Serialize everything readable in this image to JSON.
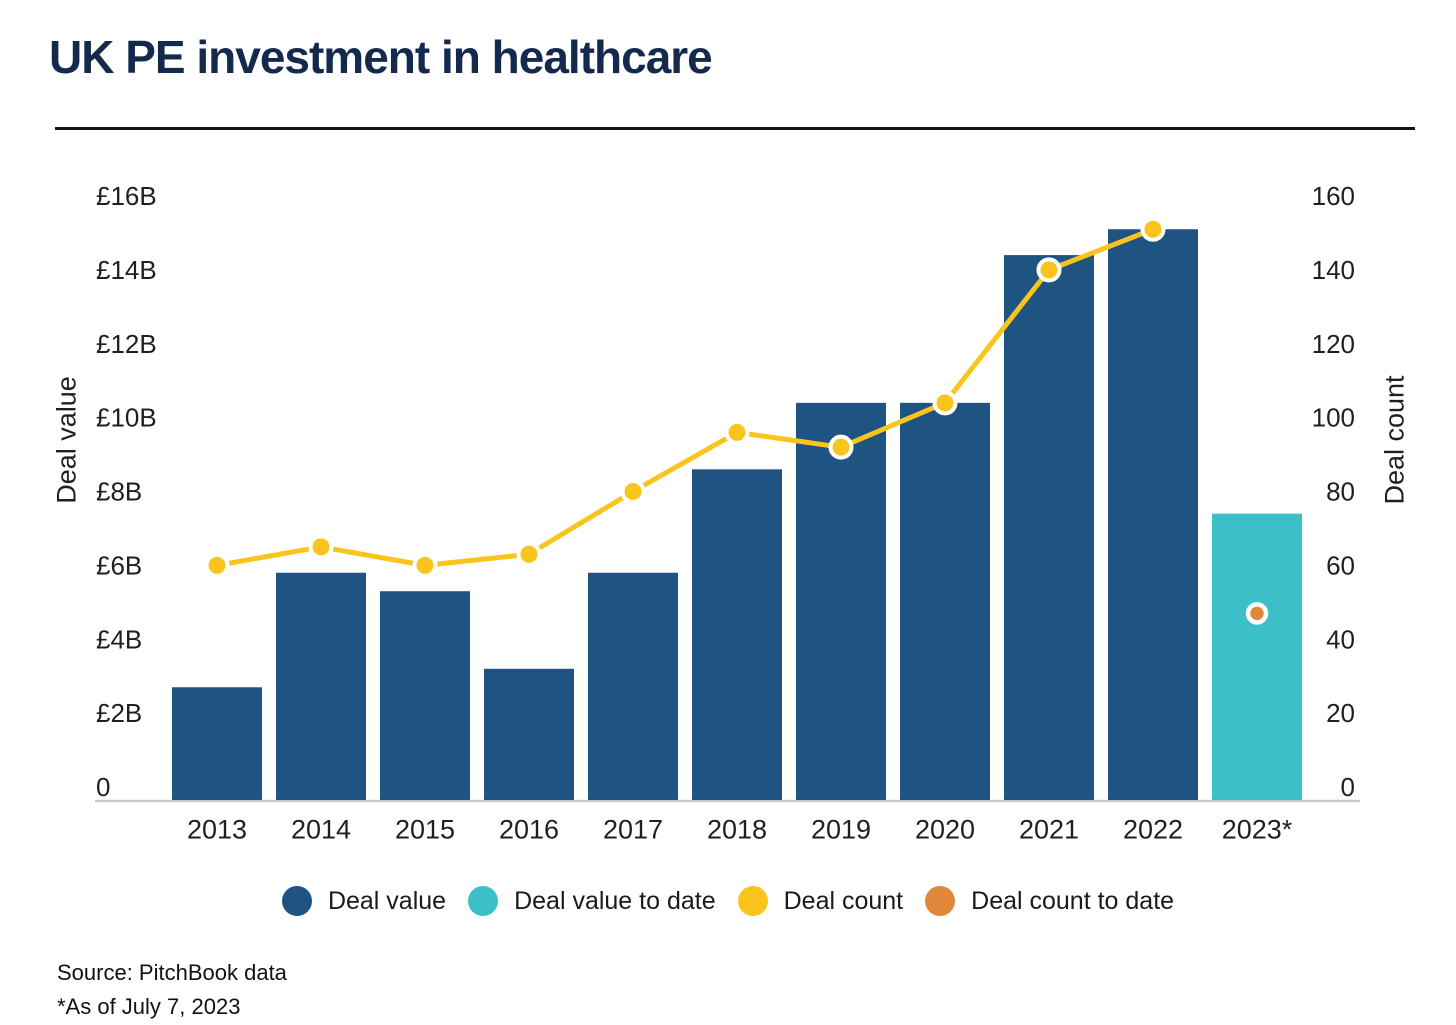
{
  "title": "UK PE investment in healthcare",
  "colors": {
    "deal_value": "#1F5381",
    "deal_value_to_date": "#3DBFC9",
    "deal_count": "#F9C51D",
    "deal_count_to_date": "#E0873C",
    "title_text": "#13294E",
    "axis_text": "#1f1f1f",
    "axis_line": "#c9c9c9"
  },
  "legend": [
    {
      "label": "Deal value",
      "color": "#1F5381"
    },
    {
      "label": "Deal value to date",
      "color": "#3DBFC9"
    },
    {
      "label": "Deal count",
      "color": "#F9C51D"
    },
    {
      "label": "Deal count to date",
      "color": "#E0873C"
    }
  ],
  "footer": {
    "source": "Source: PitchBook data",
    "note": "*As of July 7, 2023"
  },
  "chart_data": {
    "type": "bar",
    "subtype": "bar-plus-line-dual-axis",
    "categories": [
      "2013",
      "2014",
      "2015",
      "2016",
      "2017",
      "2018",
      "2019",
      "2020",
      "2021",
      "2022",
      "2023*"
    ],
    "series": [
      {
        "name": "Deal value",
        "type": "bar",
        "axis": "left",
        "unit": "GBP billions",
        "color": "#1F5381",
        "values": [
          2.7,
          5.8,
          5.3,
          3.2,
          5.8,
          8.6,
          10.4,
          10.4,
          14.4,
          15.1,
          null
        ]
      },
      {
        "name": "Deal value to date",
        "type": "bar",
        "axis": "left",
        "unit": "GBP billions",
        "color": "#3DBFC9",
        "values": [
          null,
          null,
          null,
          null,
          null,
          null,
          null,
          null,
          null,
          null,
          7.4
        ]
      },
      {
        "name": "Deal count",
        "type": "line",
        "axis": "right",
        "color": "#F9C51D",
        "values": [
          60,
          65,
          60,
          63,
          80,
          96,
          92,
          104,
          140,
          151,
          null
        ]
      },
      {
        "name": "Deal count to date",
        "type": "point",
        "axis": "right",
        "color": "#E0873C",
        "values": [
          null,
          null,
          null,
          null,
          null,
          null,
          null,
          null,
          null,
          null,
          47
        ]
      }
    ],
    "left_axis": {
      "label": "Deal value",
      "min": 0,
      "max": 16,
      "ticks": [
        {
          "label": "£16B",
          "value": 16
        },
        {
          "label": "£14B",
          "value": 14
        },
        {
          "label": "£12B",
          "value": 12
        },
        {
          "label": "£10B",
          "value": 10
        },
        {
          "label": "£8B",
          "value": 8
        },
        {
          "label": "£6B",
          "value": 6
        },
        {
          "label": "£4B",
          "value": 4
        },
        {
          "label": "£2B",
          "value": 2
        },
        {
          "label": "0",
          "value": 0
        }
      ]
    },
    "right_axis": {
      "label": "Deal count",
      "min": 0,
      "max": 160,
      "ticks": [
        {
          "label": "160",
          "value": 160
        },
        {
          "label": "140",
          "value": 140
        },
        {
          "label": "120",
          "value": 120
        },
        {
          "label": "100",
          "value": 100
        },
        {
          "label": "80",
          "value": 80
        },
        {
          "label": "60",
          "value": 60
        },
        {
          "label": "40",
          "value": 40
        },
        {
          "label": "20",
          "value": 20
        },
        {
          "label": "0",
          "value": 0
        }
      ]
    },
    "grid": false,
    "legend_position": "bottom"
  }
}
